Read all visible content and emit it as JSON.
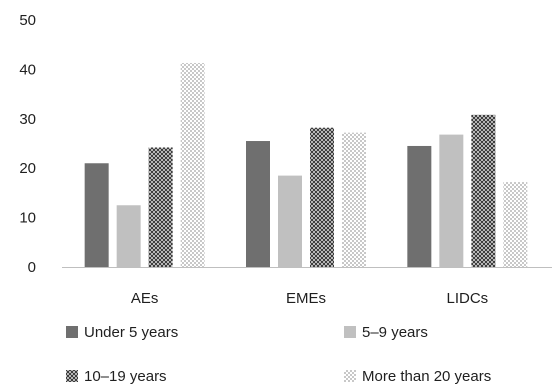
{
  "chart_data": {
    "type": "bar",
    "categories": [
      "AEs",
      "EMEs",
      "LIDCs"
    ],
    "series": [
      {
        "name": "Under 5 years",
        "values": [
          21,
          25.5,
          24.5
        ],
        "color": "#6f6f6f",
        "pattern": "solid"
      },
      {
        "name": "5–9 years",
        "values": [
          12.5,
          18.5,
          26.8
        ],
        "color": "#c0c0c0",
        "pattern": "solid"
      },
      {
        "name": "10–19 years",
        "values": [
          24.2,
          28.2,
          30.8
        ],
        "color": "#4a4a4a",
        "pattern": "crosshatch"
      },
      {
        "name": "More than 20 years",
        "values": [
          41.3,
          27.2,
          17.2
        ],
        "color": "#d0d0d0",
        "pattern": "dots"
      }
    ],
    "ylim": [
      0,
      50
    ],
    "yticks": [
      0,
      10,
      20,
      30,
      40,
      50
    ],
    "grid": false,
    "legend_position": "bottom",
    "title": "",
    "xlabel": "",
    "ylabel": ""
  }
}
